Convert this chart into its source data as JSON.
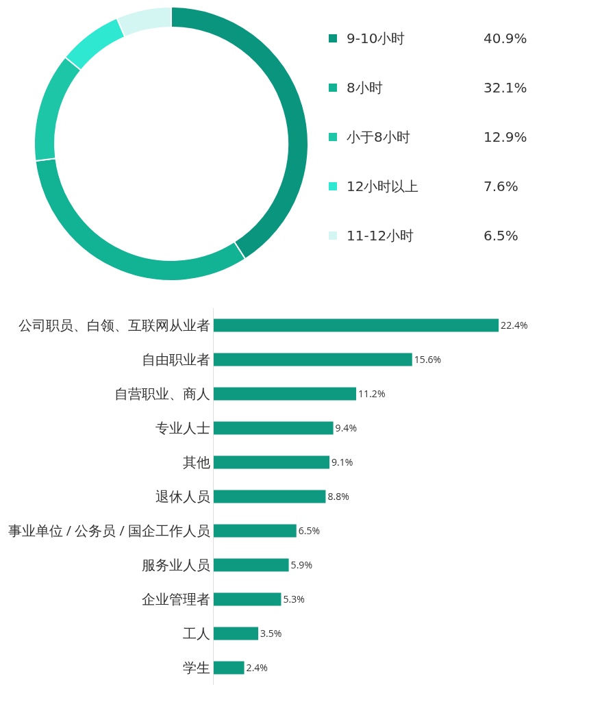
{
  "chart_data": [
    {
      "type": "donut",
      "categories": [
        "9-10小时",
        "8小时",
        "小于8小时",
        "12小时以上",
        "11-12小时"
      ],
      "values": [
        40.9,
        32.1,
        12.9,
        7.6,
        6.5
      ],
      "value_labels": [
        "40.9%",
        "32.1%",
        "12.9%",
        "7.6%",
        "6.5%"
      ],
      "colors": [
        "#0a967e",
        "#12b294",
        "#1dc6a6",
        "#2ee8d2",
        "#d3f6f3"
      ],
      "legend": "right"
    },
    {
      "type": "bar",
      "orientation": "horizontal",
      "categories": [
        "公司职员、白领、互联网从业者",
        "自由职业者",
        "自营职业、商人",
        "专业人士",
        "其他",
        "退休人员",
        "事业单位 / 公务员 / 国企工作人员",
        "服务业人员",
        "企业管理者",
        "工人",
        "学生"
      ],
      "values": [
        22.4,
        15.6,
        11.2,
        9.4,
        9.1,
        8.8,
        6.5,
        5.9,
        5.3,
        3.5,
        2.4
      ],
      "value_labels": [
        "22.4%",
        "15.6%",
        "11.2%",
        "9.4%",
        "9.1%",
        "8.8%",
        "6.5%",
        "5.9%",
        "5.3%",
        "3.5%",
        "2.4%"
      ],
      "color": "#0e9a80",
      "tick_labels": "y"
    }
  ]
}
